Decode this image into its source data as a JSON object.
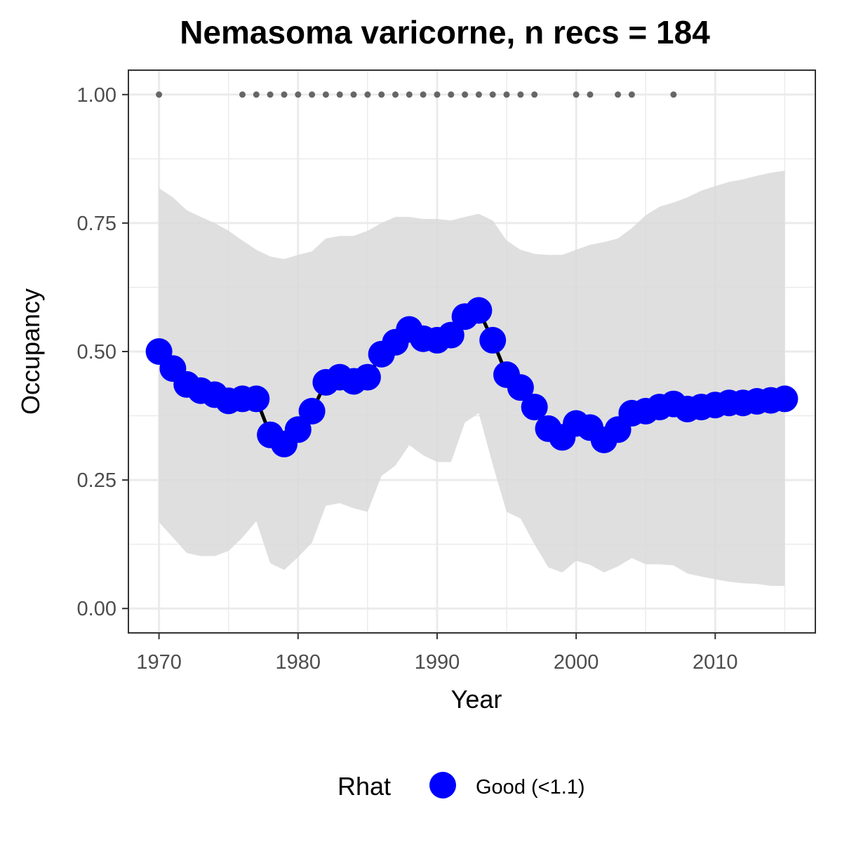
{
  "chart_data": {
    "type": "line",
    "title": "Nemasoma varicorne, n recs = 184",
    "xlabel": "Year",
    "ylabel": "Occupancy",
    "xlim": [
      1967.8,
      1917.2
    ],
    "ylim": [
      -0.0475,
      1.0475
    ],
    "x_ticks": [
      1970,
      1980,
      1990,
      2000,
      2010
    ],
    "x_tick_labels": [
      "1970",
      "1980",
      "1990",
      "2000",
      "2010"
    ],
    "y_ticks": [
      0.0,
      0.25,
      0.5,
      0.75,
      1.0
    ],
    "y_tick_labels": [
      "0.00",
      "0.25",
      "0.50",
      "0.75",
      "1.00"
    ],
    "grid": true,
    "legend": {
      "title": "Rhat",
      "placement": "bottom",
      "entries": [
        {
          "label": "Good (<1.1)",
          "color": "#0000ff"
        }
      ]
    },
    "colors": {
      "points": "#0000ff",
      "line": "#000000",
      "ribbon": "#d9d9d9",
      "records": "#666666",
      "panel_border": "#333333",
      "grid_major": "#ebebeb"
    },
    "years": [
      1970,
      1971,
      1972,
      1973,
      1974,
      1975,
      1976,
      1977,
      1978,
      1979,
      1980,
      1981,
      1982,
      1983,
      1984,
      1985,
      1986,
      1987,
      1988,
      1989,
      1990,
      1991,
      1992,
      1993,
      1994,
      1995,
      1996,
      1997,
      1998,
      1999,
      2000,
      2001,
      2002,
      2003,
      2004,
      2005,
      2006,
      2007,
      2008,
      2009,
      2010,
      2011,
      2012,
      2013,
      2014,
      2015
    ],
    "series": [
      {
        "name": "Good (<1.1)",
        "values": [
          0.5,
          0.467,
          0.436,
          0.424,
          0.416,
          0.404,
          0.408,
          0.408,
          0.338,
          0.32,
          0.348,
          0.384,
          0.44,
          0.45,
          0.442,
          0.45,
          0.495,
          0.518,
          0.543,
          0.525,
          0.522,
          0.532,
          0.568,
          0.58,
          0.522,
          0.455,
          0.43,
          0.392,
          0.35,
          0.333,
          0.36,
          0.352,
          0.328,
          0.348,
          0.38,
          0.384,
          0.392,
          0.398,
          0.388,
          0.392,
          0.396,
          0.4,
          0.4,
          0.403,
          0.405,
          0.408
        ]
      }
    ],
    "ribbon_lower": [
      0.168,
      0.138,
      0.108,
      0.102,
      0.102,
      0.112,
      0.138,
      0.17,
      0.088,
      0.075,
      0.1,
      0.128,
      0.2,
      0.205,
      0.195,
      0.188,
      0.258,
      0.278,
      0.318,
      0.298,
      0.285,
      0.285,
      0.362,
      0.38,
      0.28,
      0.188,
      0.175,
      0.125,
      0.08,
      0.07,
      0.093,
      0.085,
      0.07,
      0.082,
      0.098,
      0.086,
      0.086,
      0.084,
      0.068,
      0.062,
      0.057,
      0.052,
      0.049,
      0.048,
      0.044,
      0.044
    ],
    "ribbon_upper": [
      0.818,
      0.8,
      0.775,
      0.762,
      0.75,
      0.735,
      0.716,
      0.698,
      0.685,
      0.68,
      0.688,
      0.695,
      0.72,
      0.725,
      0.725,
      0.735,
      0.75,
      0.762,
      0.762,
      0.758,
      0.758,
      0.755,
      0.762,
      0.768,
      0.755,
      0.716,
      0.698,
      0.69,
      0.688,
      0.688,
      0.698,
      0.708,
      0.713,
      0.72,
      0.74,
      0.765,
      0.782,
      0.79,
      0.8,
      0.813,
      0.822,
      0.83,
      0.835,
      0.842,
      0.848,
      0.852
    ],
    "record_years": [
      1970,
      1976,
      1977,
      1978,
      1979,
      1980,
      1981,
      1982,
      1983,
      1984,
      1985,
      1986,
      1987,
      1988,
      1989,
      1990,
      1991,
      1992,
      1993,
      1994,
      1995,
      1996,
      1997,
      2000,
      2001,
      2003,
      2004,
      2007
    ],
    "record_value": 1.0
  }
}
